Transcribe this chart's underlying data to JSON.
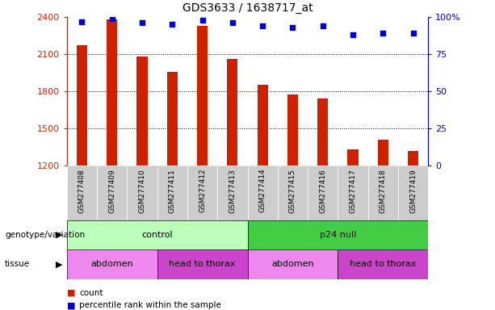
{
  "title": "GDS3633 / 1638717_at",
  "samples": [
    "GSM277408",
    "GSM277409",
    "GSM277410",
    "GSM277411",
    "GSM277412",
    "GSM277413",
    "GSM277414",
    "GSM277415",
    "GSM277416",
    "GSM277417",
    "GSM277418",
    "GSM277419"
  ],
  "counts": [
    2175,
    2380,
    2080,
    1960,
    2330,
    2060,
    1855,
    1775,
    1745,
    1330,
    1410,
    1320
  ],
  "percentile_ranks": [
    97,
    99,
    96,
    95,
    98,
    96,
    94,
    93,
    94,
    88,
    89,
    89
  ],
  "ylim_left": [
    1200,
    2400
  ],
  "ylim_right": [
    0,
    100
  ],
  "yticks_left": [
    1200,
    1500,
    1800,
    2100,
    2400
  ],
  "yticks_right": [
    0,
    25,
    50,
    75,
    100
  ],
  "bar_color": "#cc2200",
  "dot_color": "#0000cc",
  "bar_width": 0.35,
  "grid_color": "black",
  "groups": [
    {
      "label": "control",
      "start": 0,
      "end": 6,
      "color": "#bbffbb"
    },
    {
      "label": "p24 null",
      "start": 6,
      "end": 12,
      "color": "#44cc44"
    }
  ],
  "tissues": [
    {
      "label": "abdomen",
      "start": 0,
      "end": 3,
      "color": "#ee88ee"
    },
    {
      "label": "head to thorax",
      "start": 3,
      "end": 6,
      "color": "#cc44cc"
    },
    {
      "label": "abdomen",
      "start": 6,
      "end": 9,
      "color": "#ee88ee"
    },
    {
      "label": "head to thorax",
      "start": 9,
      "end": 12,
      "color": "#cc44cc"
    }
  ],
  "legend_count_color": "#cc2200",
  "legend_percentile_color": "#0000cc",
  "left_axis_color": "#cc2200",
  "right_axis_color": "#0000cc",
  "row_label_genotype": "genotype/variation",
  "row_label_tissue": "tissue",
  "xtick_bg_color": "#cccccc",
  "background_color": "#ffffff"
}
